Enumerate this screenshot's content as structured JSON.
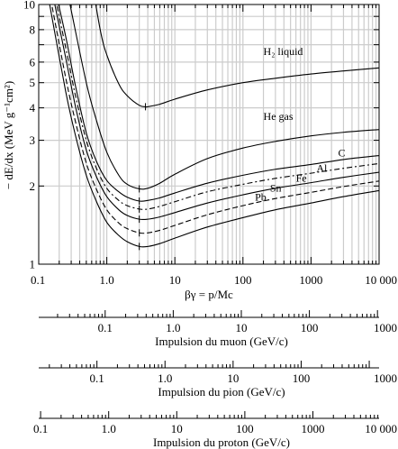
{
  "chart_data": {
    "type": "line",
    "x_log": true,
    "y_log": true,
    "xlim": [
      0.1,
      10000
    ],
    "ylim": [
      1,
      10
    ],
    "grid": true,
    "xlabel": "βγ = p/Mc",
    "ylabel": "− dE/dx (MeV g⁻¹cm²)",
    "x_tick_labels": [
      "0.1",
      "1.0",
      "10",
      "100",
      "1000",
      "10 000"
    ],
    "x_ticks": [
      0.1,
      1,
      10,
      100,
      1000,
      10000
    ],
    "y_tick_labels": [
      "1",
      "2",
      "3",
      "4",
      "5",
      "6",
      "8",
      "10"
    ],
    "y_ticks": [
      1,
      2,
      3,
      4,
      5,
      6,
      8,
      10
    ],
    "series": [
      {
        "name": "H₂ liquid",
        "dash": "",
        "label_at": [
          200,
          6.4
        ],
        "x": [
          0.6,
          0.8,
          1,
          1.5,
          2,
          3,
          3.7,
          4,
          6,
          10,
          30,
          100,
          300,
          1000,
          3000,
          10000
        ],
        "y": [
          12.5,
          8.0,
          6.4,
          4.95,
          4.45,
          4.09,
          4.04,
          4.04,
          4.13,
          4.32,
          4.69,
          5.0,
          5.2,
          5.4,
          5.55,
          5.7
        ]
      },
      {
        "name": "He gas",
        "dash": "",
        "label_at": [
          200,
          3.6
        ],
        "x": [
          0.25,
          0.3,
          0.5,
          0.7,
          1,
          1.5,
          2,
          3,
          4,
          6,
          10,
          30,
          100,
          300,
          1000,
          3000,
          10000
        ],
        "y": [
          12.0,
          9.5,
          5.0,
          3.6,
          2.7,
          2.2,
          2.03,
          1.95,
          1.96,
          2.05,
          2.22,
          2.55,
          2.8,
          2.97,
          3.12,
          3.22,
          3.3
        ]
      },
      {
        "name": "C",
        "dash": "",
        "label_at": [
          2500,
          2.6
        ],
        "x": [
          0.18,
          0.25,
          0.35,
          0.5,
          0.7,
          1,
          1.5,
          2,
          3,
          4,
          6,
          10,
          30,
          100,
          300,
          1000,
          3000,
          10000
        ],
        "y": [
          11.0,
          7.5,
          4.8,
          3.2,
          2.5,
          2.1,
          1.9,
          1.81,
          1.75,
          1.76,
          1.8,
          1.88,
          2.05,
          2.2,
          2.32,
          2.42,
          2.53,
          2.62
        ]
      },
      {
        "name": "Al",
        "dash": "6,3,2,3",
        "label_at": [
          1200,
          2.27
        ],
        "x": [
          0.17,
          0.25,
          0.35,
          0.5,
          0.7,
          1,
          1.5,
          2,
          3,
          4,
          6,
          10,
          30,
          100,
          300,
          1000,
          3000,
          10000
        ],
        "y": [
          11.0,
          6.8,
          4.4,
          3.0,
          2.35,
          1.96,
          1.76,
          1.68,
          1.63,
          1.63,
          1.67,
          1.74,
          1.9,
          2.03,
          2.14,
          2.24,
          2.34,
          2.44
        ]
      },
      {
        "name": "Fe",
        "dash": "",
        "label_at": [
          600,
          2.08
        ],
        "x": [
          0.16,
          0.25,
          0.35,
          0.5,
          0.7,
          1,
          1.5,
          2,
          3,
          4,
          6,
          10,
          30,
          100,
          300,
          1000,
          3000,
          10000
        ],
        "y": [
          11.0,
          6.2,
          4.0,
          2.75,
          2.18,
          1.82,
          1.62,
          1.54,
          1.49,
          1.49,
          1.52,
          1.58,
          1.72,
          1.85,
          1.96,
          2.06,
          2.16,
          2.26
        ]
      },
      {
        "name": "Sn",
        "dash": "6,3",
        "label_at": [
          250,
          1.9
        ],
        "x": [
          0.15,
          0.25,
          0.35,
          0.5,
          0.7,
          1,
          1.5,
          2,
          3,
          4,
          6,
          10,
          30,
          100,
          300,
          1000,
          3000,
          10000
        ],
        "y": [
          10.5,
          5.2,
          3.5,
          2.45,
          1.95,
          1.62,
          1.44,
          1.37,
          1.32,
          1.32,
          1.35,
          1.41,
          1.55,
          1.68,
          1.79,
          1.89,
          1.99,
          2.09
        ]
      },
      {
        "name": "Pb",
        "dash": "",
        "label_at": [
          150,
          1.76
        ],
        "x": [
          0.14,
          0.25,
          0.35,
          0.5,
          0.7,
          1,
          1.5,
          2,
          3,
          4,
          6,
          10,
          30,
          100,
          300,
          1000,
          3000,
          10000
        ],
        "y": [
          10.5,
          4.6,
          3.1,
          2.2,
          1.75,
          1.45,
          1.29,
          1.22,
          1.17,
          1.17,
          1.2,
          1.26,
          1.39,
          1.51,
          1.62,
          1.72,
          1.82,
          1.92
        ]
      }
    ],
    "momentum_scales": [
      {
        "title": "Impulsion du muon (GeV/c)",
        "ratio": 0.10566,
        "ticks": [
          0.1,
          1.0,
          10,
          100,
          1000
        ],
        "tick_labels": [
          "0.1",
          "1.0",
          "10",
          "100",
          "1000"
        ]
      },
      {
        "title": "Impulsion du pion (GeV/c)",
        "ratio": 0.13957,
        "ticks": [
          0.1,
          1.0,
          10,
          100,
          1000
        ],
        "tick_labels": [
          "0.1",
          "1.0",
          "10",
          "100",
          "1000"
        ]
      },
      {
        "title": "Impulsion du proton (GeV/c)",
        "ratio": 0.93827,
        "ticks": [
          0.1,
          1.0,
          10,
          100,
          1000,
          10000
        ],
        "tick_labels": [
          "0.1",
          "1.0",
          "10",
          "100",
          "1000",
          "10 000"
        ]
      }
    ]
  }
}
